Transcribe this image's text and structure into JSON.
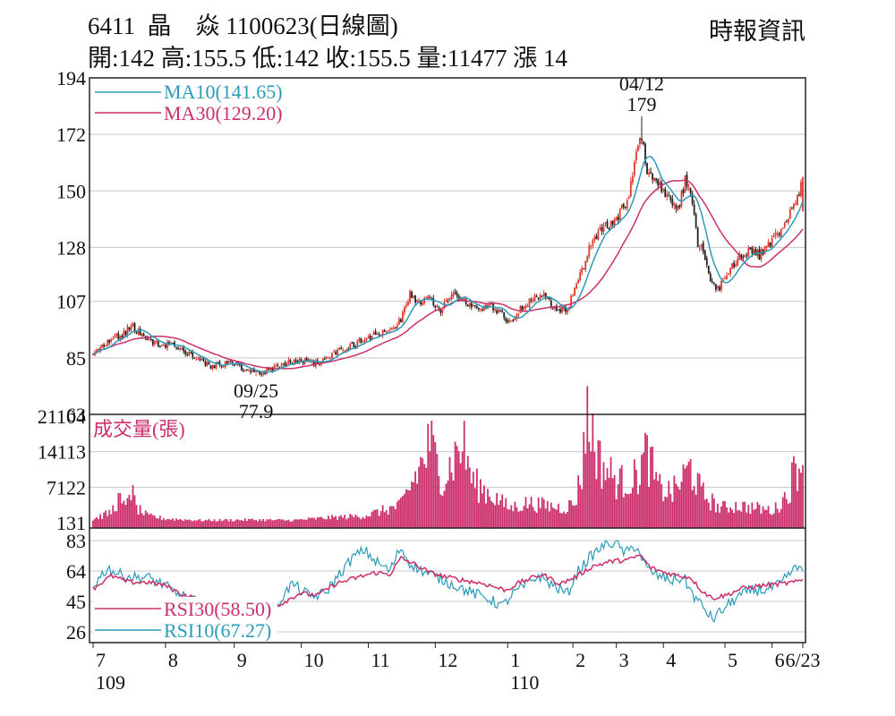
{
  "header": {
    "code_line": "6411  晶    焱 1100623(日線圖)",
    "publisher": "時報資訊",
    "stats_line": "開:142 高:155.5 低:142 收:155.5 量:11477 漲 14"
  },
  "chart_data": [
    {
      "type": "candlestick",
      "panel": "price",
      "y_ticks": [
        "194",
        "172",
        "150",
        "128",
        "107",
        "85",
        "63"
      ],
      "ylim": [
        63,
        194
      ],
      "legend": [
        {
          "name": "MA10(141.65)",
          "color": "#2a9bb8"
        },
        {
          "name": "MA30(129.20)",
          "color": "#cc2f6b"
        }
      ],
      "annotations": [
        {
          "date": "04/12",
          "value": "179"
        },
        {
          "date": "09/25",
          "value": "77.9"
        }
      ],
      "grid": true
    },
    {
      "type": "bar",
      "panel": "volume",
      "title": "成交量(張)",
      "y_ticks": [
        "21104",
        "14113",
        "7122",
        "131"
      ],
      "ylim": [
        131,
        21104
      ],
      "color": "#cc2f6b"
    },
    {
      "type": "line",
      "panel": "rsi",
      "y_ticks": [
        "83",
        "64",
        "45",
        "26"
      ],
      "ylim": [
        26,
        83
      ],
      "legend": [
        {
          "name": "RSI30(58.50)",
          "color": "#cc2f6b"
        },
        {
          "name": "RSI10(67.27)",
          "color": "#2a9bb8"
        }
      ]
    }
  ],
  "x_axis": {
    "months": [
      "7",
      "8",
      "9",
      "10",
      "11",
      "12",
      "1",
      "2",
      "3",
      "4",
      "5",
      "6",
      "6/23"
    ],
    "years": [
      "109",
      "110"
    ]
  },
  "series_anchors": {
    "close": [
      [
        0,
        87
      ],
      [
        10,
        92
      ],
      [
        18,
        95
      ],
      [
        21,
        98
      ],
      [
        26,
        94
      ],
      [
        32,
        91
      ],
      [
        44,
        90
      ],
      [
        55,
        86
      ],
      [
        65,
        82
      ],
      [
        75,
        83
      ],
      [
        83,
        81
      ],
      [
        90,
        79
      ],
      [
        98,
        80
      ],
      [
        106,
        83
      ],
      [
        114,
        84
      ],
      [
        124,
        83
      ],
      [
        134,
        87
      ],
      [
        146,
        91
      ],
      [
        155,
        94
      ],
      [
        164,
        95
      ],
      [
        170,
        100
      ],
      [
        175,
        110
      ],
      [
        180,
        106
      ],
      [
        185,
        109
      ],
      [
        192,
        104
      ],
      [
        198,
        110
      ],
      [
        205,
        107
      ],
      [
        212,
        104
      ],
      [
        218,
        106
      ],
      [
        224,
        103
      ],
      [
        230,
        99
      ],
      [
        236,
        104
      ],
      [
        244,
        108
      ],
      [
        250,
        109
      ],
      [
        256,
        104
      ],
      [
        262,
        104
      ],
      [
        268,
        115
      ],
      [
        274,
        128
      ],
      [
        281,
        135
      ],
      [
        288,
        138
      ],
      [
        296,
        148
      ],
      [
        300,
        165
      ],
      [
        303,
        172
      ],
      [
        306,
        158
      ],
      [
        312,
        152
      ],
      [
        318,
        148
      ],
      [
        323,
        143
      ],
      [
        327,
        154
      ],
      [
        331,
        145
      ],
      [
        334,
        130
      ],
      [
        338,
        125
      ],
      [
        341,
        116
      ],
      [
        345,
        112
      ],
      [
        350,
        116
      ],
      [
        356,
        124
      ],
      [
        362,
        127
      ],
      [
        368,
        125
      ],
      [
        374,
        130
      ],
      [
        380,
        135
      ],
      [
        386,
        143
      ],
      [
        390,
        150
      ],
      [
        392,
        155.5
      ]
    ],
    "rsi30": [
      [
        0,
        53
      ],
      [
        10,
        61
      ],
      [
        20,
        57
      ],
      [
        30,
        57
      ],
      [
        40,
        55
      ],
      [
        48,
        50
      ],
      [
        56,
        47
      ],
      [
        66,
        43
      ],
      [
        76,
        44
      ],
      [
        86,
        43
      ],
      [
        96,
        38
      ],
      [
        106,
        45
      ],
      [
        114,
        50
      ],
      [
        124,
        49
      ],
      [
        134,
        56
      ],
      [
        146,
        60
      ],
      [
        156,
        63
      ],
      [
        164,
        62
      ],
      [
        170,
        72
      ],
      [
        178,
        68
      ],
      [
        186,
        63
      ],
      [
        196,
        60
      ],
      [
        206,
        58
      ],
      [
        216,
        56
      ],
      [
        228,
        52
      ],
      [
        236,
        57
      ],
      [
        248,
        62
      ],
      [
        258,
        56
      ],
      [
        266,
        60
      ],
      [
        276,
        67
      ],
      [
        286,
        70
      ],
      [
        296,
        71
      ],
      [
        302,
        74
      ],
      [
        308,
        66
      ],
      [
        316,
        63
      ],
      [
        324,
        61
      ],
      [
        330,
        60
      ],
      [
        336,
        52
      ],
      [
        342,
        47
      ],
      [
        350,
        49
      ],
      [
        358,
        53
      ],
      [
        370,
        55
      ],
      [
        380,
        56
      ],
      [
        388,
        57
      ],
      [
        392,
        58.5
      ]
    ],
    "rsi10": [
      [
        0,
        55
      ],
      [
        8,
        66
      ],
      [
        14,
        62
      ],
      [
        22,
        60
      ],
      [
        30,
        60
      ],
      [
        38,
        56
      ],
      [
        46,
        50
      ],
      [
        54,
        46
      ],
      [
        62,
        42
      ],
      [
        70,
        40
      ],
      [
        78,
        42
      ],
      [
        86,
        40
      ],
      [
        94,
        32
      ],
      [
        102,
        44
      ],
      [
        110,
        56
      ],
      [
        120,
        48
      ],
      [
        128,
        50
      ],
      [
        136,
        62
      ],
      [
        144,
        73
      ],
      [
        150,
        77
      ],
      [
        156,
        70
      ],
      [
        164,
        64
      ],
      [
        170,
        79
      ],
      [
        174,
        70
      ],
      [
        180,
        65
      ],
      [
        186,
        62
      ],
      [
        194,
        58
      ],
      [
        202,
        54
      ],
      [
        210,
        50
      ],
      [
        218,
        47
      ],
      [
        226,
        42
      ],
      [
        232,
        50
      ],
      [
        240,
        56
      ],
      [
        246,
        61
      ],
      [
        254,
        55
      ],
      [
        262,
        50
      ],
      [
        268,
        64
      ],
      [
        274,
        72
      ],
      [
        282,
        80
      ],
      [
        288,
        82
      ],
      [
        294,
        75
      ],
      [
        300,
        80
      ],
      [
        306,
        65
      ],
      [
        312,
        61
      ],
      [
        320,
        58
      ],
      [
        326,
        60
      ],
      [
        332,
        48
      ],
      [
        338,
        40
      ],
      [
        342,
        34
      ],
      [
        348,
        40
      ],
      [
        356,
        48
      ],
      [
        364,
        52
      ],
      [
        372,
        52
      ],
      [
        380,
        56
      ],
      [
        386,
        64
      ],
      [
        392,
        67.27
      ]
    ],
    "volume": [
      [
        0,
        800
      ],
      [
        10,
        2200
      ],
      [
        14,
        4800
      ],
      [
        18,
        2800
      ],
      [
        20,
        7800
      ],
      [
        24,
        3000
      ],
      [
        30,
        1500
      ],
      [
        40,
        900
      ],
      [
        60,
        600
      ],
      [
        90,
        700
      ],
      [
        110,
        600
      ],
      [
        130,
        1100
      ],
      [
        150,
        1500
      ],
      [
        170,
        3500
      ],
      [
        178,
        9200
      ],
      [
        184,
        13500
      ],
      [
        186,
        16000
      ],
      [
        190,
        11500
      ],
      [
        194,
        9000
      ],
      [
        204,
        16000
      ],
      [
        210,
        8000
      ],
      [
        220,
        5600
      ],
      [
        230,
        3000
      ],
      [
        240,
        4000
      ],
      [
        250,
        3500
      ],
      [
        260,
        3000
      ],
      [
        266,
        4000
      ],
      [
        270,
        10000
      ],
      [
        272,
        21104
      ],
      [
        276,
        17500
      ],
      [
        280,
        12000
      ],
      [
        290,
        8000
      ],
      [
        300,
        9000
      ],
      [
        306,
        14000
      ],
      [
        312,
        7000
      ],
      [
        320,
        6000
      ],
      [
        330,
        11000
      ],
      [
        336,
        6000
      ],
      [
        346,
        3000
      ],
      [
        356,
        3500
      ],
      [
        366,
        3000
      ],
      [
        376,
        2500
      ],
      [
        384,
        6000
      ],
      [
        388,
        11500
      ],
      [
        392,
        11477
      ]
    ]
  }
}
